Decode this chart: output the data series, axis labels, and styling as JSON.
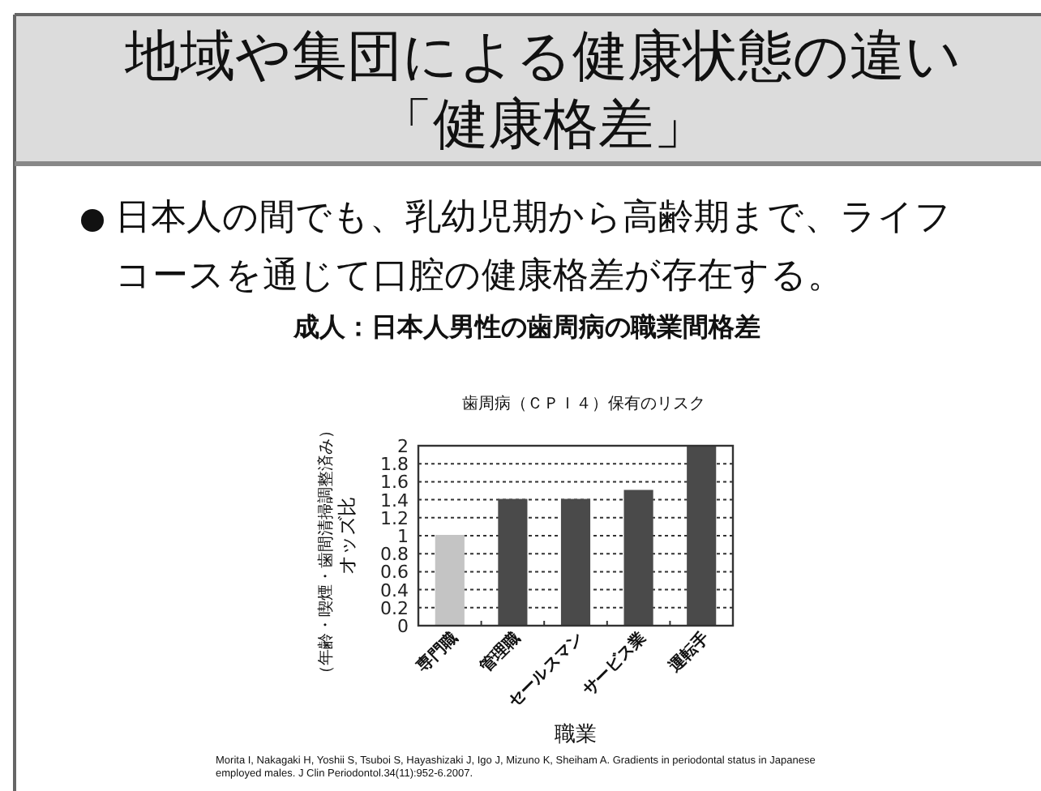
{
  "chart_data": {
    "type": "bar",
    "title": "地域や集団による健康状態の違い「健康格差」",
    "subtitle": "日本人の間でも、乳幼児期から高齢期まで、ライフコースを通じて口腔の健康格差が存在する。",
    "annotations": [
      "成人：日本人男性の歯周病の職業間格差",
      "歯周病（ＣＰＩ４）保有のリスク",
      "（年齢・喫煙・歯間清掃調整済み）",
      "Morita I, Nakagaki H, Yoshii S, Tsuboi S, Hayashizaki J, Igo J, Mizuno K, Sheiham A. Gradients in periodontal status in Japanese employed males. J Clin Periodontol.34(11):952-6.2007."
    ],
    "xlabel": "職業",
    "ylabel": "オッズ比",
    "categories": [
      "専門職",
      "管理職",
      "セールスマン",
      "サービス業",
      "運転手"
    ],
    "values": [
      1.0,
      1.4,
      1.4,
      1.5,
      2.0
    ],
    "colors": [
      "#c4c4c4",
      "#4a4a4a",
      "#4a4a4a",
      "#4a4a4a",
      "#4a4a4a"
    ],
    "ylim": [
      0,
      2
    ],
    "yticks": [
      0,
      0.2,
      0.4,
      0.6,
      0.8,
      1,
      1.2,
      1.4,
      1.6,
      1.8,
      2
    ],
    "grid": "y"
  }
}
